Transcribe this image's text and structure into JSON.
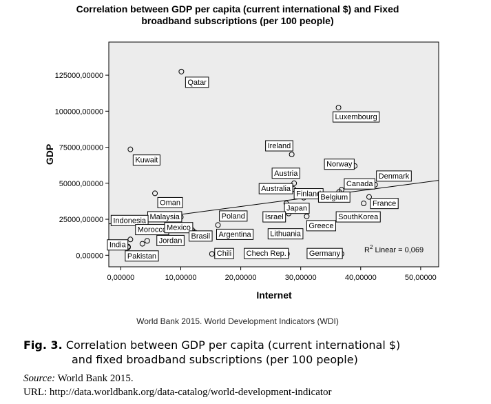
{
  "chart_data": {
    "type": "scatter",
    "title_line1": "Correlation between GDP per capita (current international $) and Fixed",
    "title_line2": "broadband subscriptions (per 100 people)",
    "xlabel": "Internet",
    "ylabel": "GDP",
    "xlim": [
      -2,
      53
    ],
    "ylim": [
      -8000,
      148000
    ],
    "xticks": [
      0,
      10,
      20,
      30,
      40,
      50
    ],
    "xtick_labels": [
      "0,00000",
      "10,00000",
      "20,00000",
      "30,00000",
      "40,00000",
      "50,00000"
    ],
    "yticks": [
      0,
      25000,
      50000,
      75000,
      100000,
      125000
    ],
    "ytick_labels": [
      "0,00000",
      "25000,00000",
      "50000,00000",
      "75000,00000",
      "100000,00000",
      "125000,00000"
    ],
    "grid": false,
    "fit_line": {
      "x": [
        -2,
        53
      ],
      "y": [
        21800,
        52000
      ]
    },
    "r2_prefix": "R",
    "r2_sup": "2",
    "r2_text": " Linear = 0,069",
    "points": [
      {
        "label": "Qatar",
        "x": 10.1,
        "y": 127500
      },
      {
        "label": "Luxembourg",
        "x": 36.3,
        "y": 102500
      },
      {
        "label": "Kuwait",
        "x": 1.6,
        "y": 73500
      },
      {
        "label": "Ireland",
        "x": 28.5,
        "y": 70000
      },
      {
        "label": "Norway",
        "x": 39.0,
        "y": 62000
      },
      {
        "label": "Denmark",
        "x": 42.4,
        "y": 49000
      },
      {
        "label": "Austria",
        "x": 28.9,
        "y": 50000
      },
      {
        "label": "Australia",
        "x": 28.8,
        "y": 46000
      },
      {
        "label": "Finland",
        "x": 31.2,
        "y": 41500
      },
      {
        "label": "Canada",
        "x": 36.8,
        "y": 45500
      },
      {
        "label": "Oman",
        "x": 5.7,
        "y": 43000
      },
      {
        "label": "Japan",
        "x": 30.5,
        "y": 40000
      },
      {
        "label": "Belgium",
        "x": 36.4,
        "y": 44000
      },
      {
        "label": "France",
        "x": 41.4,
        "y": 40500
      },
      {
        "label": "Poland",
        "x": 19.2,
        "y": 27000
      },
      {
        "label": "Israel",
        "x": 27.6,
        "y": 36000
      },
      {
        "label": "SouthKorea",
        "x": 40.5,
        "y": 36000
      },
      {
        "label": "Lithuania",
        "x": 28.0,
        "y": 29000
      },
      {
        "label": "Greece",
        "x": 31.0,
        "y": 27000
      },
      {
        "label": "Malaysia",
        "x": 10.0,
        "y": 26500
      },
      {
        "label": "Indonesia",
        "x": 1.6,
        "y": 11000
      },
      {
        "label": "Argentina",
        "x": 16.2,
        "y": 21000
      },
      {
        "label": "Morocco",
        "x": 3.6,
        "y": 8000
      },
      {
        "label": "Mexico",
        "x": 11.9,
        "y": 17500
      },
      {
        "label": "Brasil",
        "x": 12.3,
        "y": 16000
      },
      {
        "label": "Jordan",
        "x": 4.4,
        "y": 10000
      },
      {
        "label": "Pakistan",
        "x": 1.2,
        "y": 5500
      },
      {
        "label": "India",
        "x": 1.2,
        "y": 6000
      },
      {
        "label": "Chili",
        "x": 15.2,
        "y": 1000
      },
      {
        "label": "Chech Rep.",
        "x": 27.7,
        "y": 1000
      },
      {
        "label": "Germany",
        "x": 36.8,
        "y": 1000
      }
    ]
  },
  "source_note": "World Bank 2015. World Development Indicators (WDI)",
  "caption": {
    "label": "Fig. 3.",
    "line1": " Correlation between GDP per capita (current international $)",
    "line2": "and fixed broadband subscriptions (per 100 people)"
  },
  "source": {
    "label": "Source:",
    "text": " World Bank 2015."
  },
  "url": "URL: http://data.worldbank.org/data-catalog/world-development-indicator"
}
